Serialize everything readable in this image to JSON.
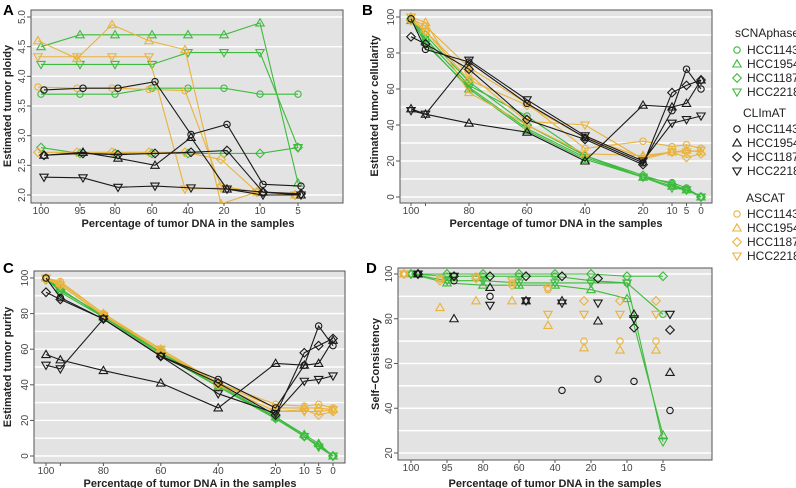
{
  "colors": {
    "sCNAphase": "#3dbb3d",
    "CLImAT": "#1a1a1a",
    "ASCAT": "#e9b33c",
    "panel_bg": "#e3e3e3",
    "grid": "#ffffff"
  },
  "legend": {
    "groups": [
      {
        "method": "sCNAphase",
        "items": [
          {
            "label": "HCC1143",
            "marker": "circle"
          },
          {
            "label": "HCC1954",
            "marker": "triangle"
          },
          {
            "label": "HCC1187",
            "marker": "diamond"
          },
          {
            "label": "HCC2218",
            "marker": "triangle-down"
          }
        ]
      },
      {
        "method": "CLImAT",
        "items": [
          {
            "label": "HCC1143",
            "marker": "circle"
          },
          {
            "label": "HCC1954",
            "marker": "triangle"
          },
          {
            "label": "HCC1187",
            "marker": "diamond"
          },
          {
            "label": "HCC2218",
            "marker": "triangle-down"
          }
        ]
      },
      {
        "method": "ASCAT",
        "items": [
          {
            "label": "HCC1143",
            "marker": "circle"
          },
          {
            "label": "HCC1954",
            "marker": "triangle"
          },
          {
            "label": "HCC1187",
            "marker": "diamond"
          },
          {
            "label": "HCC2218",
            "marker": "triangle-down"
          }
        ]
      }
    ]
  },
  "chart_data": [
    {
      "panel": "A",
      "type": "line",
      "x_scale": "categorical",
      "xlabel": "Percentage of tumor DNA in the samples",
      "ylabel": "Estimated tumor ploidy",
      "categories": [
        "100",
        "95",
        "80",
        "60",
        "40",
        "20",
        "10",
        "5"
      ],
      "ylim": [
        2.0,
        5.0
      ],
      "yticks": [
        "2.0",
        "2.5",
        "3.0",
        "3.5",
        "4.0",
        "4.5",
        "5.0"
      ],
      "grid": true,
      "series": [
        {
          "method": "sCNAphase",
          "sample": "HCC1143",
          "marker": "circle",
          "style": "line",
          "values": [
            3.7,
            3.7,
            3.7,
            3.8,
            3.8,
            3.8,
            3.7,
            3.7
          ]
        },
        {
          "method": "sCNAphase",
          "sample": "HCC1954",
          "marker": "triangle",
          "style": "line",
          "values": [
            4.5,
            4.7,
            4.7,
            4.7,
            4.7,
            4.7,
            4.9,
            2.2
          ]
        },
        {
          "method": "sCNAphase",
          "sample": "HCC1187",
          "marker": "diamond",
          "style": "line",
          "values": [
            2.8,
            2.7,
            2.7,
            2.7,
            2.7,
            2.7,
            2.7,
            2.8
          ]
        },
        {
          "method": "sCNAphase",
          "sample": "HCC2218",
          "marker": "triangle-down",
          "style": "line",
          "values": [
            4.2,
            4.2,
            4.2,
            4.2,
            4.4,
            4.4,
            4.4,
            2.8
          ]
        },
        {
          "method": "ASCAT",
          "sample": "HCC1143",
          "marker": "circle",
          "style": "line",
          "values": [
            3.82,
            3.8,
            3.8,
            3.78,
            3.76,
            2.15,
            2.05,
            2.0
          ]
        },
        {
          "method": "ASCAT",
          "sample": "HCC1954",
          "marker": "triangle",
          "style": "line",
          "values": [
            4.6,
            4.3,
            4.87,
            4.6,
            4.45,
            1.85,
            2.05,
            2.0
          ]
        },
        {
          "method": "ASCAT",
          "sample": "HCC1187",
          "marker": "diamond",
          "style": "line",
          "values": [
            2.72,
            2.72,
            2.72,
            2.72,
            2.72,
            2.6,
            2.05,
            2.0
          ]
        },
        {
          "method": "ASCAT",
          "sample": "HCC2218",
          "marker": "triangle-down",
          "style": "line",
          "values": [
            4.33,
            4.33,
            4.33,
            4.33,
            2.1,
            2.12,
            2.05,
            2.0
          ]
        },
        {
          "method": "CLImAT",
          "sample": "HCC1143",
          "marker": "circle",
          "style": "line",
          "values": [
            3.77,
            3.8,
            3.8,
            3.91,
            3.02,
            3.19,
            2.18,
            2.15
          ]
        },
        {
          "method": "CLImAT",
          "sample": "HCC1954",
          "marker": "triangle",
          "style": "line",
          "values": [
            2.67,
            2.72,
            2.62,
            2.5,
            2.97,
            2.1,
            2.05,
            2.0
          ]
        },
        {
          "method": "CLImAT",
          "sample": "HCC1187",
          "marker": "diamond",
          "style": "line",
          "values": [
            2.67,
            2.7,
            2.68,
            2.7,
            2.72,
            2.75,
            2.05,
            2.02
          ]
        },
        {
          "method": "CLImAT",
          "sample": "HCC2218",
          "marker": "triangle-down",
          "style": "line",
          "values": [
            2.3,
            2.29,
            2.13,
            2.15,
            2.12,
            2.1,
            2.0,
            2.0
          ]
        }
      ]
    },
    {
      "panel": "B",
      "type": "line",
      "x_scale": "linear",
      "xlabel": "Percentage of tumor DNA in the samples",
      "ylabel": "Estimated tumor cellularity",
      "x": [
        100,
        95,
        80,
        60,
        40,
        20,
        10,
        5,
        0
      ],
      "xticks": [
        "100",
        "",
        "80",
        "60",
        "40",
        "20",
        "10",
        "5",
        "0"
      ],
      "xlim": [
        100,
        0
      ],
      "ylim": [
        0,
        100
      ],
      "yticks": [
        "0",
        "20",
        "40",
        "60",
        "80",
        "100"
      ],
      "grid": true,
      "series": [
        {
          "method": "sCNAphase",
          "sample": "HCC1143",
          "marker": "circle",
          "style": "line",
          "values": [
            99,
            88,
            62,
            45,
            23,
            11,
            8,
            5,
            0
          ]
        },
        {
          "method": "sCNAphase",
          "sample": "HCC1954",
          "marker": "triangle",
          "style": "line",
          "values": [
            98,
            86,
            60,
            37,
            21,
            11,
            6,
            4,
            0
          ]
        },
        {
          "method": "sCNAphase",
          "sample": "HCC1187",
          "marker": "diamond",
          "style": "line",
          "values": [
            99,
            90,
            64,
            40,
            23,
            12,
            7,
            4,
            0
          ]
        },
        {
          "method": "sCNAphase",
          "sample": "HCC2218",
          "marker": "triangle-down",
          "style": "line",
          "values": [
            100,
            85,
            61,
            38,
            22,
            11,
            5,
            4,
            0
          ]
        },
        {
          "method": "ASCAT",
          "sample": "HCC1143",
          "marker": "circle",
          "style": "line",
          "values": [
            99,
            95,
            72,
            52,
            27,
            31,
            28,
            29,
            27
          ]
        },
        {
          "method": "ASCAT",
          "sample": "HCC1954",
          "marker": "triangle",
          "style": "line",
          "values": [
            100,
            97,
            58,
            40,
            24,
            23,
            25,
            26,
            25
          ]
        },
        {
          "method": "ASCAT",
          "sample": "HCC1187",
          "marker": "diamond",
          "style": "line",
          "values": [
            98,
            92,
            65,
            51,
            33,
            22,
            25,
            22,
            24
          ]
        },
        {
          "method": "ASCAT",
          "sample": "HCC2218",
          "marker": "triangle-down",
          "style": "line",
          "values": [
            100,
            92,
            68,
            42,
            40,
            21,
            25,
            25,
            26
          ]
        },
        {
          "method": "CLImAT",
          "sample": "HCC1143",
          "marker": "circle",
          "style": "line",
          "values": [
            99,
            82,
            75,
            52,
            33,
            19,
            48,
            71,
            60
          ]
        },
        {
          "method": "CLImAT",
          "sample": "HCC1954",
          "marker": "triangle",
          "style": "line",
          "values": [
            49,
            46,
            41,
            36,
            20,
            51,
            50,
            52,
            65
          ]
        },
        {
          "method": "CLImAT",
          "sample": "HCC1187",
          "marker": "diamond",
          "style": "line",
          "values": [
            89,
            85,
            71,
            43,
            32,
            18,
            58,
            62,
            65
          ]
        },
        {
          "method": "CLImAT",
          "sample": "HCC2218",
          "marker": "triangle-down",
          "style": "line",
          "values": [
            48,
            46,
            76,
            54,
            34,
            20,
            41,
            43,
            45
          ]
        }
      ]
    },
    {
      "panel": "C",
      "type": "line",
      "x_scale": "linear",
      "xlabel": "Percentage of tumor DNA in the samples",
      "ylabel": "Estimated tumor purity",
      "x": [
        100,
        95,
        80,
        60,
        40,
        20,
        10,
        5,
        0
      ],
      "xticks": [
        "100",
        "",
        "80",
        "60",
        "40",
        "20",
        "10",
        "5",
        "0"
      ],
      "xlim": [
        100,
        0
      ],
      "ylim": [
        0,
        100
      ],
      "yticks": [
        "0",
        "20",
        "40",
        "60",
        "80",
        "100"
      ],
      "grid": true,
      "series": [
        {
          "method": "sCNAphase",
          "sample": "HCC1143",
          "marker": "circle",
          "style": "line",
          "values": [
            100,
            93,
            79,
            58,
            39,
            21,
            11,
            6,
            0
          ]
        },
        {
          "method": "sCNAphase",
          "sample": "HCC1954",
          "marker": "triangle",
          "style": "line",
          "values": [
            100,
            94,
            78,
            57,
            39,
            22,
            12,
            7,
            0
          ]
        },
        {
          "method": "sCNAphase",
          "sample": "HCC1187",
          "marker": "diamond",
          "style": "line",
          "values": [
            99,
            93,
            79,
            58,
            40,
            22,
            11,
            6,
            0
          ]
        },
        {
          "method": "sCNAphase",
          "sample": "HCC2218",
          "marker": "triangle-down",
          "style": "line",
          "values": [
            100,
            92,
            78,
            58,
            39,
            21,
            11,
            5,
            0
          ]
        },
        {
          "method": "ASCAT",
          "sample": "HCC1143",
          "marker": "circle",
          "style": "line",
          "values": [
            100,
            98,
            80,
            60,
            41,
            29,
            28,
            29,
            27
          ]
        },
        {
          "method": "ASCAT",
          "sample": "HCC1954",
          "marker": "triangle",
          "style": "line",
          "values": [
            100,
            97,
            80,
            60,
            41,
            27,
            27,
            27,
            26
          ]
        },
        {
          "method": "ASCAT",
          "sample": "HCC1187",
          "marker": "diamond",
          "style": "line",
          "values": [
            99,
            96,
            79,
            59,
            40,
            25,
            26,
            23,
            25
          ]
        },
        {
          "method": "ASCAT",
          "sample": "HCC2218",
          "marker": "triangle-down",
          "style": "line",
          "values": [
            100,
            96,
            79,
            60,
            40,
            25,
            25,
            25,
            26
          ]
        },
        {
          "method": "CLImAT",
          "sample": "HCC1143",
          "marker": "circle",
          "style": "line",
          "values": [
            100,
            89,
            77,
            56,
            43,
            27,
            51,
            73,
            62
          ]
        },
        {
          "method": "CLImAT",
          "sample": "HCC1954",
          "marker": "triangle",
          "style": "line",
          "values": [
            57,
            54,
            48,
            41,
            27,
            52,
            51,
            52,
            65
          ]
        },
        {
          "method": "CLImAT",
          "sample": "HCC1187",
          "marker": "diamond",
          "style": "line",
          "values": [
            92,
            88,
            77,
            56,
            41,
            23,
            58,
            62,
            66
          ]
        },
        {
          "method": "CLImAT",
          "sample": "HCC2218",
          "marker": "triangle-down",
          "style": "line",
          "values": [
            51,
            49,
            77,
            56,
            35,
            24,
            42,
            43,
            45
          ]
        }
      ]
    },
    {
      "panel": "D",
      "type": "line",
      "x_scale": "categorical",
      "xlabel": "Percentage of tumor DNA in the samples",
      "ylabel": "Self−Consistency",
      "categories": [
        "100",
        "95",
        "80",
        "60",
        "40",
        "20",
        "10",
        "5"
      ],
      "ylim": [
        20,
        100
      ],
      "yticks": [
        "20",
        "40",
        "60",
        "80",
        "100"
      ],
      "grid": true,
      "series": [
        {
          "method": "sCNAphase",
          "sample": "HCC1143",
          "marker": "circle",
          "style": "line",
          "values": [
            100,
            99,
            99,
            99,
            99,
            97,
            96,
            82
          ]
        },
        {
          "method": "sCNAphase",
          "sample": "HCC1954",
          "marker": "triangle",
          "style": "line",
          "values": [
            100,
            96,
            95,
            95,
            95,
            93,
            89,
            28
          ]
        },
        {
          "method": "sCNAphase",
          "sample": "HCC1187",
          "marker": "diamond",
          "style": "line",
          "values": [
            100,
            100,
            100,
            100,
            100,
            100,
            99,
            99
          ]
        },
        {
          "method": "sCNAphase",
          "sample": "HCC2218",
          "marker": "triangle-down",
          "style": "line",
          "values": [
            100,
            97,
            97,
            96,
            96,
            96,
            96,
            25
          ]
        },
        {
          "method": "ASCAT",
          "sample": "HCC1143",
          "marker": "circle",
          "style": "points",
          "values": [
            100,
            98,
            99,
            96,
            93,
            70,
            70,
            70
          ]
        },
        {
          "method": "ASCAT",
          "sample": "HCC1954",
          "marker": "triangle",
          "style": "points",
          "values": [
            100,
            85,
            88,
            88,
            77,
            67,
            66,
            66
          ]
        },
        {
          "method": "ASCAT",
          "sample": "HCC1187",
          "marker": "diamond",
          "style": "points",
          "values": [
            100,
            97,
            98,
            95,
            94,
            88,
            88,
            88
          ]
        },
        {
          "method": "ASCAT",
          "sample": "HCC2218",
          "marker": "triangle-down",
          "style": "points",
          "values": [
            100,
            98,
            98,
            97,
            82,
            82,
            82,
            82
          ]
        },
        {
          "method": "CLImAT",
          "sample": "HCC1143",
          "marker": "circle",
          "style": "points",
          "values": [
            100,
            97,
            90,
            88,
            48,
            53,
            52,
            39
          ]
        },
        {
          "method": "CLImAT",
          "sample": "HCC1954",
          "marker": "triangle",
          "style": "points",
          "values": [
            100,
            80,
            94,
            88,
            88,
            79,
            82,
            56
          ]
        },
        {
          "method": "CLImAT",
          "sample": "HCC1187",
          "marker": "diamond",
          "style": "points",
          "values": [
            100,
            99,
            99,
            99,
            99,
            98,
            76,
            75
          ]
        },
        {
          "method": "CLImAT",
          "sample": "HCC2218",
          "marker": "triangle-down",
          "style": "points",
          "values": [
            100,
            99,
            86,
            88,
            87,
            87,
            80,
            82
          ]
        }
      ]
    }
  ]
}
